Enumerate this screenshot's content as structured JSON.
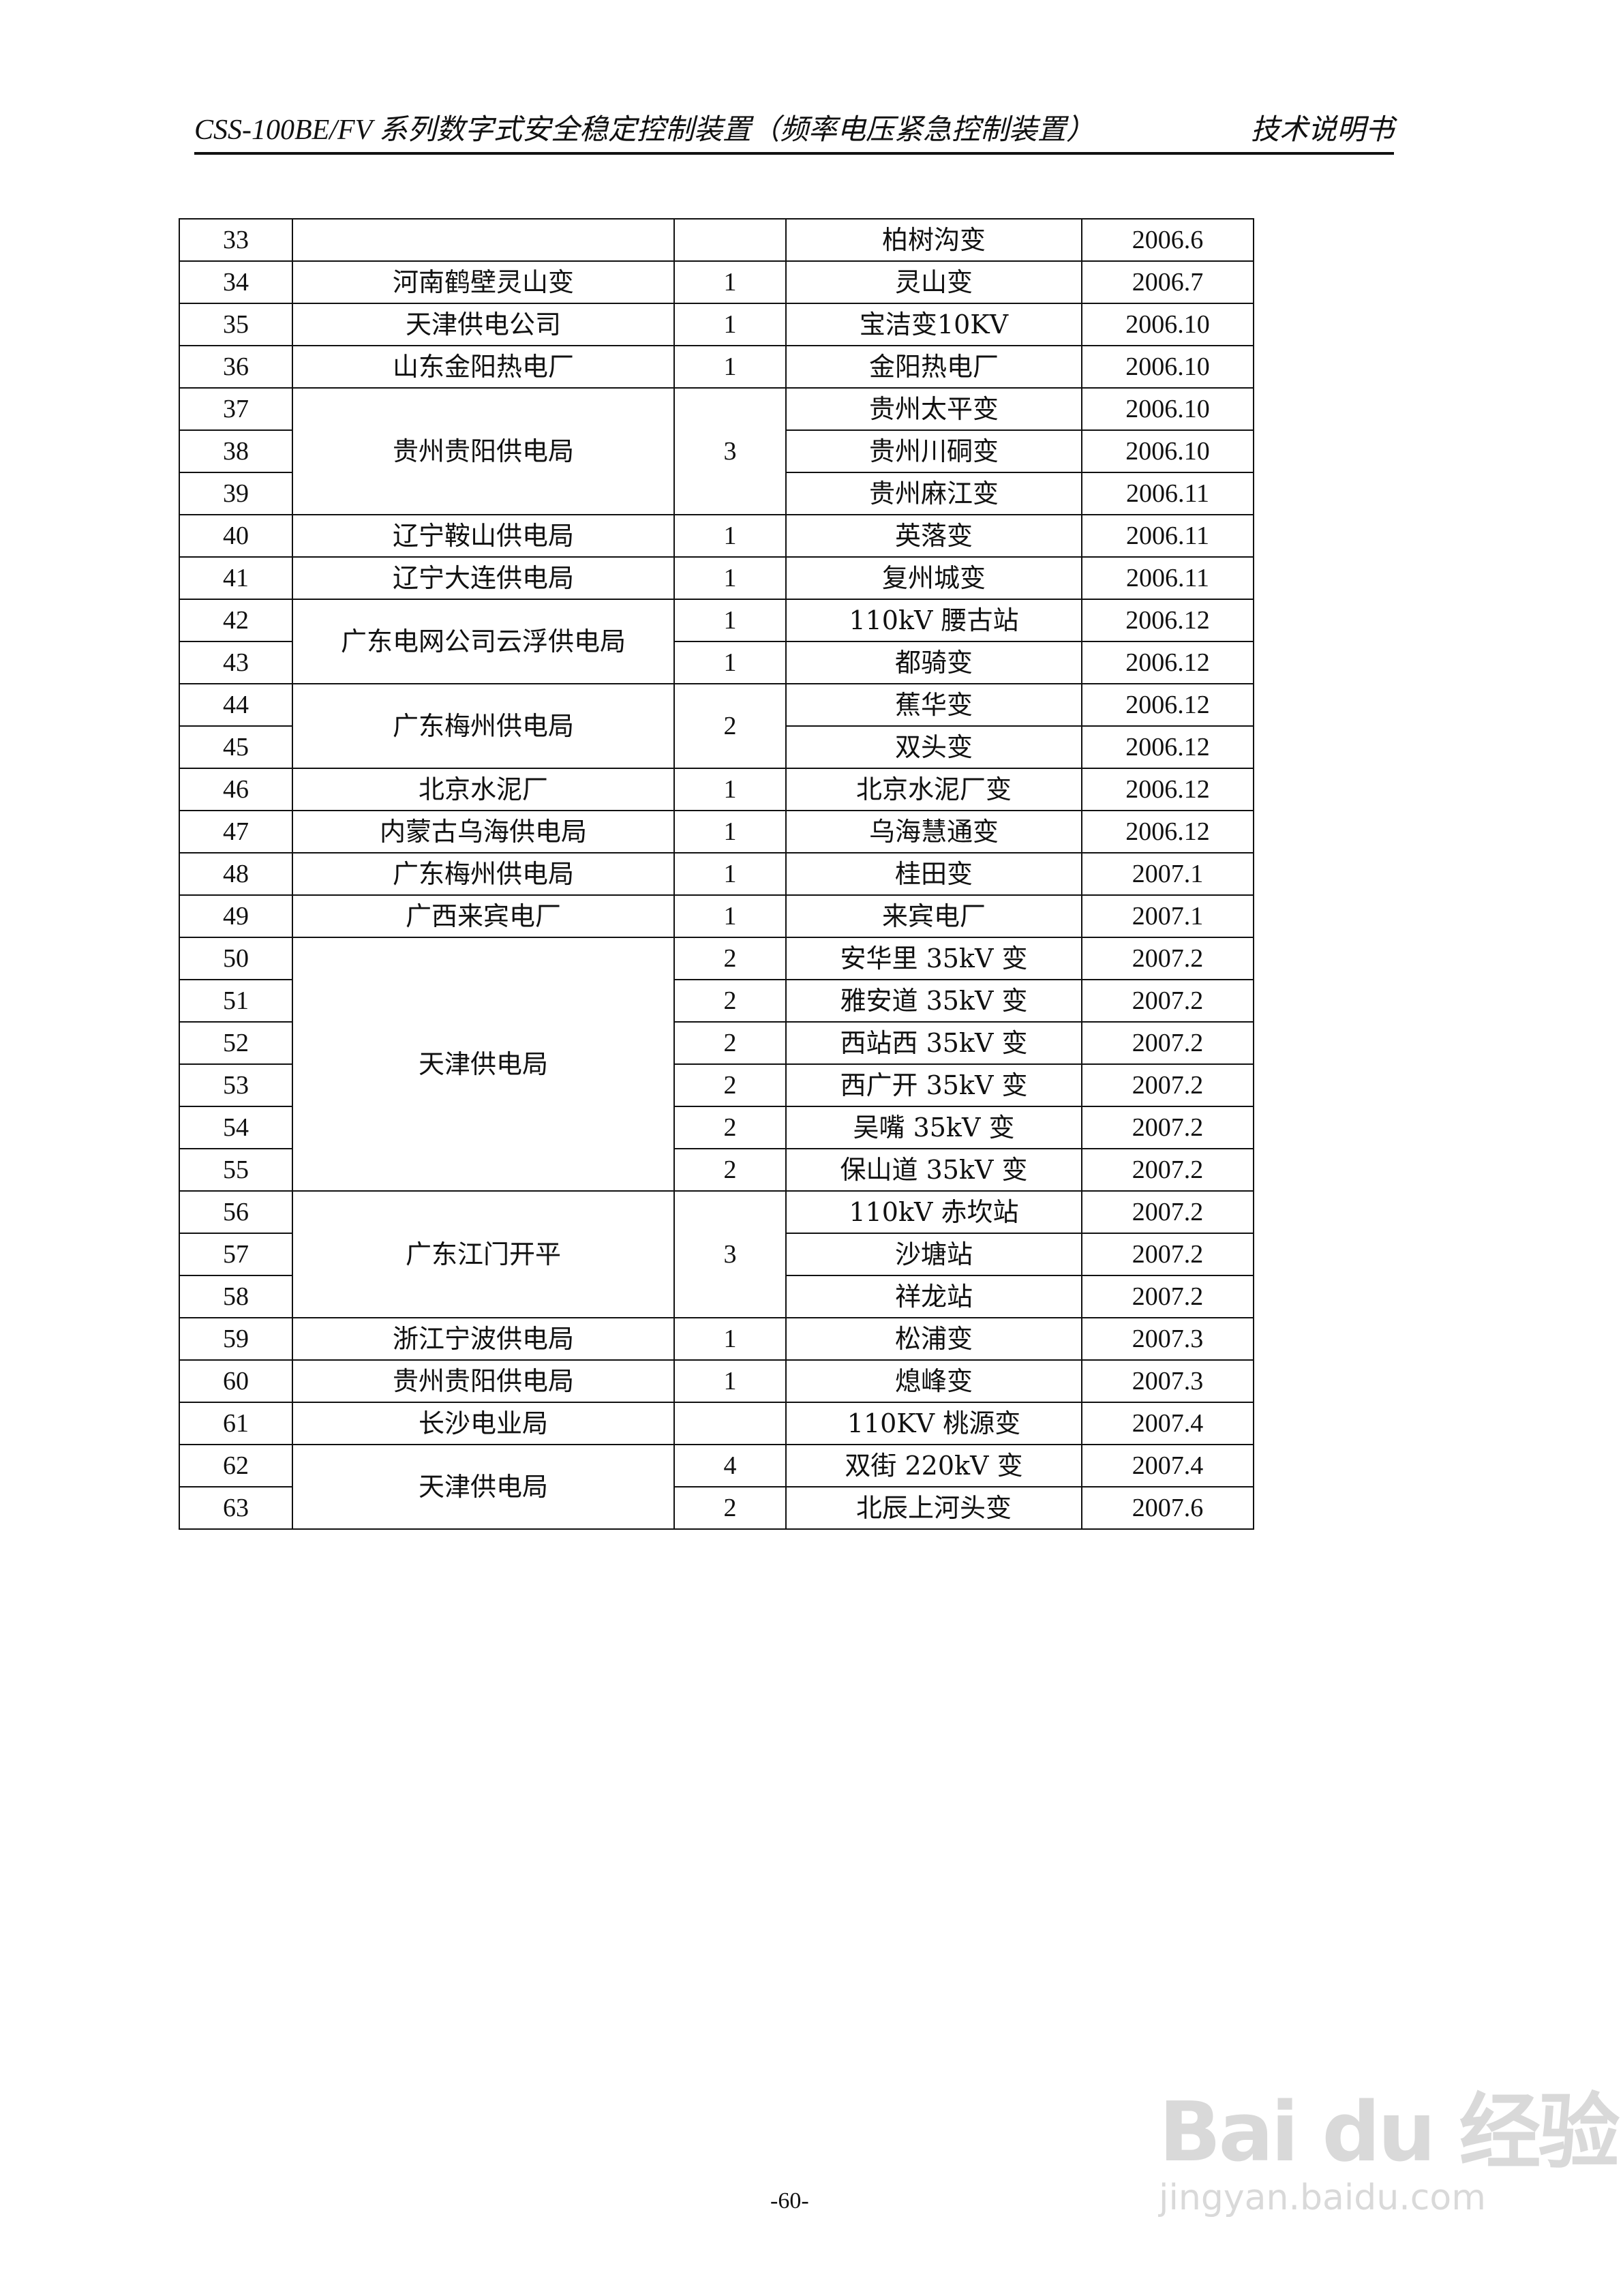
{
  "header": {
    "title": "CSS-100BE/FV 系列数字式安全稳定控制装置（频率电压紧急控制装置）",
    "right": "技术说明书"
  },
  "table": {
    "rows": [
      {
        "no": "33",
        "unit": "",
        "unit_span": 1,
        "qty": "",
        "qty_span": 1,
        "site": "柏树沟变",
        "date": "2006.6"
      },
      {
        "no": "34",
        "unit": "河南鹤壁灵山变",
        "unit_span": 1,
        "qty": "1",
        "qty_span": 1,
        "site": "灵山变",
        "date": "2006.7"
      },
      {
        "no": "35",
        "unit": "天津供电公司",
        "unit_span": 1,
        "qty": "1",
        "qty_span": 1,
        "site": "宝洁变10KV",
        "date": "2006.10"
      },
      {
        "no": "36",
        "unit": "山东金阳热电厂",
        "unit_span": 1,
        "qty": "1",
        "qty_span": 1,
        "site": "金阳热电厂",
        "date": "2006.10"
      },
      {
        "no": "37",
        "unit": "贵州贵阳供电局",
        "unit_span": 3,
        "qty": "3",
        "qty_span": 3,
        "site": "贵州太平变",
        "date": "2006.10"
      },
      {
        "no": "38",
        "site": "贵州川硐变",
        "date": "2006.10"
      },
      {
        "no": "39",
        "site": "贵州麻江变",
        "date": "2006.11"
      },
      {
        "no": "40",
        "unit": "辽宁鞍山供电局",
        "unit_span": 1,
        "qty": "1",
        "qty_span": 1,
        "site": "英落变",
        "date": "2006.11"
      },
      {
        "no": "41",
        "unit": "辽宁大连供电局",
        "unit_span": 1,
        "qty": "1",
        "qty_span": 1,
        "site": "复州城变",
        "date": "2006.11"
      },
      {
        "no": "42",
        "unit": "广东电网公司云浮供电局",
        "unit_span": 2,
        "qty": "1",
        "qty_span": 1,
        "site": "110kV 腰古站",
        "date": "2006.12"
      },
      {
        "no": "43",
        "qty": "1",
        "qty_span": 1,
        "site": "都骑变",
        "date": "2006.12"
      },
      {
        "no": "44",
        "unit": "广东梅州供电局",
        "unit_span": 2,
        "qty": "2",
        "qty_span": 2,
        "site": "蕉华变",
        "date": "2006.12"
      },
      {
        "no": "45",
        "site": "双头变",
        "date": "2006.12"
      },
      {
        "no": "46",
        "unit": "北京水泥厂",
        "unit_span": 1,
        "qty": "1",
        "qty_span": 1,
        "site": "北京水泥厂变",
        "date": "2006.12"
      },
      {
        "no": "47",
        "unit": "内蒙古乌海供电局",
        "unit_span": 1,
        "qty": "1",
        "qty_span": 1,
        "site": "乌海慧通变",
        "date": "2006.12"
      },
      {
        "no": "48",
        "unit": "广东梅州供电局",
        "unit_span": 1,
        "qty": "1",
        "qty_span": 1,
        "site": "桂田变",
        "date": "2007.1"
      },
      {
        "no": "49",
        "unit": "广西来宾电厂",
        "unit_span": 1,
        "qty": "1",
        "qty_span": 1,
        "site": "来宾电厂",
        "date": "2007.1"
      },
      {
        "no": "50",
        "unit": "天津供电局",
        "unit_span": 6,
        "qty": "2",
        "qty_span": 1,
        "site": "安华里 35kV 变",
        "date": "2007.2"
      },
      {
        "no": "51",
        "qty": "2",
        "qty_span": 1,
        "site": "雅安道 35kV 变",
        "date": "2007.2"
      },
      {
        "no": "52",
        "qty": "2",
        "qty_span": 1,
        "site": "西站西 35kV 变",
        "date": "2007.2"
      },
      {
        "no": "53",
        "qty": "2",
        "qty_span": 1,
        "site": "西广开 35kV 变",
        "date": "2007.2"
      },
      {
        "no": "54",
        "qty": "2",
        "qty_span": 1,
        "site": "吴嘴 35kV 变",
        "date": "2007.2"
      },
      {
        "no": "55",
        "qty": "2",
        "qty_span": 1,
        "site": "保山道 35kV 变",
        "date": "2007.2"
      },
      {
        "no": "56",
        "unit": "广东江门开平",
        "unit_span": 3,
        "qty": "3",
        "qty_span": 3,
        "site": "110kV 赤坎站",
        "date": "2007.2"
      },
      {
        "no": "57",
        "site": "沙塘站",
        "date": "2007.2"
      },
      {
        "no": "58",
        "site": "祥龙站",
        "date": "2007.2"
      },
      {
        "no": "59",
        "unit": "浙江宁波供电局",
        "unit_span": 1,
        "qty": "1",
        "qty_span": 1,
        "site": "松浦变",
        "date": "2007.3"
      },
      {
        "no": "60",
        "unit": "贵州贵阳供电局",
        "unit_span": 1,
        "qty": "1",
        "qty_span": 1,
        "site": "熄峰变",
        "date": "2007.3"
      },
      {
        "no": "61",
        "unit": "长沙电业局",
        "unit_span": 1,
        "qty": "",
        "qty_span": 1,
        "site": "110KV 桃源变",
        "date": "2007.4"
      },
      {
        "no": "62",
        "unit": "天津供电局",
        "unit_span": 2,
        "qty": "4",
        "qty_span": 1,
        "site": "双街 220kV 变",
        "date": "2007.4"
      },
      {
        "no": "63",
        "qty": "2",
        "qty_span": 1,
        "site": "北辰上河头变",
        "date": "2007.6"
      }
    ]
  },
  "footer": {
    "page": "-60-"
  },
  "watermark": {
    "brand": "Baidu经验",
    "url": "jingyan.baidu.com"
  }
}
